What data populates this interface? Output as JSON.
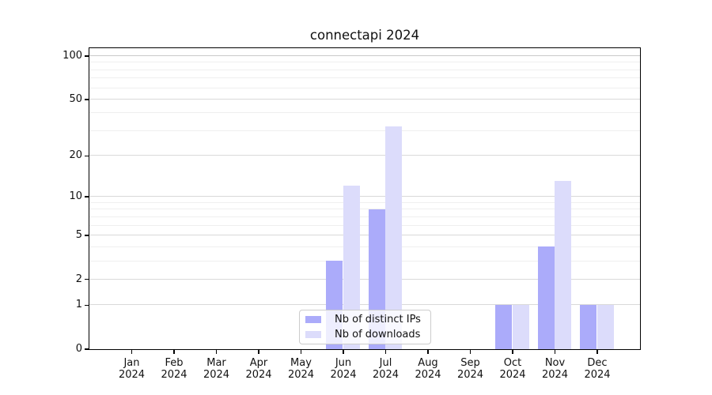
{
  "chart_data": {
    "type": "bar",
    "title": "connectapi 2024",
    "xlabel": "",
    "ylabel": "",
    "yscale": "log1p",
    "grid": true,
    "legend_position": "lower center",
    "ylim": [
      0,
      113
    ],
    "yticks": [
      "0",
      "1",
      "2",
      "5",
      "10",
      "20",
      "50",
      "100"
    ],
    "ytick_values": [
      0,
      1,
      2,
      5,
      10,
      20,
      50,
      100
    ],
    "minor_gridlines": [
      3,
      4,
      6,
      7,
      8,
      9,
      30,
      40,
      60,
      70,
      80,
      90
    ],
    "categories": [
      {
        "month": "Jan",
        "year": "2024"
      },
      {
        "month": "Feb",
        "year": "2024"
      },
      {
        "month": "Mar",
        "year": "2024"
      },
      {
        "month": "Apr",
        "year": "2024"
      },
      {
        "month": "May",
        "year": "2024"
      },
      {
        "month": "Jun",
        "year": "2024"
      },
      {
        "month": "Jul",
        "year": "2024"
      },
      {
        "month": "Aug",
        "year": "2024"
      },
      {
        "month": "Sep",
        "year": "2024"
      },
      {
        "month": "Oct",
        "year": "2024"
      },
      {
        "month": "Nov",
        "year": "2024"
      },
      {
        "month": "Dec",
        "year": "2024"
      }
    ],
    "series": [
      {
        "name": "Nb of distinct IPs",
        "color": "#ababfa",
        "values": [
          0,
          0,
          0,
          0,
          0,
          3,
          8,
          0,
          0,
          1,
          4,
          1
        ]
      },
      {
        "name": "Nb of downloads",
        "color": "#dcdcfb",
        "values": [
          0,
          0,
          0,
          0,
          0,
          12,
          32,
          0,
          0,
          1,
          13,
          1
        ]
      }
    ]
  }
}
